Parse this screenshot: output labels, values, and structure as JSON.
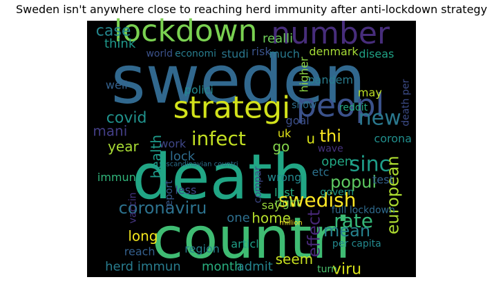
{
  "chart_data": {
    "type": "wordcloud",
    "title": "Sweden isn't anywhere close to reaching herd immunity after anti-lockdown strategy",
    "background": "#000000",
    "words": [
      {
        "text": "sweden",
        "x": 0.46,
        "y": 0.23,
        "size": 96,
        "color": "#31688e",
        "rot": 0
      },
      {
        "text": "death",
        "x": 0.41,
        "y": 0.61,
        "size": 90,
        "color": "#21a685",
        "rot": 0
      },
      {
        "text": "countri",
        "x": 0.5,
        "y": 0.85,
        "size": 82,
        "color": "#3fbc73",
        "rot": 0
      },
      {
        "text": "lockdown",
        "x": 0.3,
        "y": 0.04,
        "size": 44,
        "color": "#7ad151",
        "rot": 0
      },
      {
        "text": "number",
        "x": 0.74,
        "y": 0.05,
        "size": 44,
        "color": "#472d7b",
        "rot": 0
      },
      {
        "text": "peopl",
        "x": 0.77,
        "y": 0.33,
        "size": 46,
        "color": "#3b528b",
        "rot": 0
      },
      {
        "text": "strategi",
        "x": 0.44,
        "y": 0.34,
        "size": 44,
        "color": "#d2e21b",
        "rot": 0
      },
      {
        "text": "infect",
        "x": 0.4,
        "y": 0.46,
        "size": 28,
        "color": "#c2df23",
        "rot": 0
      },
      {
        "text": "coronaviru",
        "x": 0.23,
        "y": 0.73,
        "size": 24,
        "color": "#2c728e",
        "rot": 0
      },
      {
        "text": "swedish",
        "x": 0.7,
        "y": 0.7,
        "size": 28,
        "color": "#fde725",
        "rot": 0
      },
      {
        "text": "sinc",
        "x": 0.86,
        "y": 0.56,
        "size": 30,
        "color": "#1f9e89",
        "rot": 0
      },
      {
        "text": "popul",
        "x": 0.81,
        "y": 0.63,
        "size": 24,
        "color": "#5ec962",
        "rot": 0
      },
      {
        "text": "new",
        "x": 0.89,
        "y": 0.38,
        "size": 30,
        "color": "#2a788e",
        "rot": 0
      },
      {
        "text": "rate",
        "x": 0.81,
        "y": 0.78,
        "size": 28,
        "color": "#35b779",
        "rot": 0
      },
      {
        "text": "mean",
        "x": 0.79,
        "y": 0.82,
        "size": 24,
        "color": "#26828e",
        "rot": 0
      },
      {
        "text": "european",
        "x": 0.93,
        "y": 0.68,
        "size": 24,
        "color": "#addc30",
        "rot": 270
      },
      {
        "text": "effect",
        "x": 0.69,
        "y": 0.83,
        "size": 24,
        "color": "#482878",
        "rot": 270
      },
      {
        "text": "viru",
        "x": 0.79,
        "y": 0.97,
        "size": 22,
        "color": "#d8e219",
        "rot": 0
      },
      {
        "text": "seem",
        "x": 0.63,
        "y": 0.93,
        "size": 20,
        "color": "#c8e020",
        "rot": 0
      },
      {
        "text": "herd immun",
        "x": 0.17,
        "y": 0.96,
        "size": 18,
        "color": "#287c8e",
        "rot": 0
      },
      {
        "text": "month",
        "x": 0.41,
        "y": 0.96,
        "size": 18,
        "color": "#29af7f",
        "rot": 0
      },
      {
        "text": "admit",
        "x": 0.51,
        "y": 0.96,
        "size": 18,
        "color": "#25848e",
        "rot": 0
      },
      {
        "text": "turn",
        "x": 0.73,
        "y": 0.97,
        "size": 14,
        "color": "#4ac16d",
        "rot": 0
      },
      {
        "text": "long",
        "x": 0.17,
        "y": 0.84,
        "size": 20,
        "color": "#f1e51d",
        "rot": 0
      },
      {
        "text": "reach",
        "x": 0.16,
        "y": 0.9,
        "size": 16,
        "color": "#35608d",
        "rot": 0
      },
      {
        "text": "region",
        "x": 0.35,
        "y": 0.89,
        "size": 16,
        "color": "#277f8e",
        "rot": 0
      },
      {
        "text": "articl",
        "x": 0.48,
        "y": 0.87,
        "size": 16,
        "color": "#1fa088",
        "rot": 0
      },
      {
        "text": "home",
        "x": 0.56,
        "y": 0.77,
        "size": 20,
        "color": "#b5de2b",
        "rot": 0
      },
      {
        "text": "one",
        "x": 0.46,
        "y": 0.77,
        "size": 18,
        "color": "#2e6f8e",
        "rot": 0
      },
      {
        "text": "less",
        "x": 0.3,
        "y": 0.66,
        "size": 16,
        "color": "#3e4989",
        "rot": 0
      },
      {
        "text": "report",
        "x": 0.25,
        "y": 0.68,
        "size": 14,
        "color": "#38588c",
        "rot": 270
      },
      {
        "text": "vaccin",
        "x": 0.14,
        "y": 0.73,
        "size": 14,
        "color": "#453581",
        "rot": 270
      },
      {
        "text": "lock",
        "x": 0.29,
        "y": 0.53,
        "size": 18,
        "color": "#2f6c8e",
        "rot": 0
      },
      {
        "text": "work",
        "x": 0.26,
        "y": 0.48,
        "size": 16,
        "color": "#3f4788",
        "rot": 0
      },
      {
        "text": "health",
        "x": 0.21,
        "y": 0.53,
        "size": 20,
        "color": "#1e9b8a",
        "rot": 270
      },
      {
        "text": "year",
        "x": 0.11,
        "y": 0.49,
        "size": 20,
        "color": "#a8db34",
        "rot": 0
      },
      {
        "text": "covid",
        "x": 0.12,
        "y": 0.38,
        "size": 22,
        "color": "#20928c",
        "rot": 0
      },
      {
        "text": "mani",
        "x": 0.07,
        "y": 0.43,
        "size": 20,
        "color": "#433e85",
        "rot": 0
      },
      {
        "text": "immun",
        "x": 0.09,
        "y": 0.61,
        "size": 16,
        "color": "#31b57b",
        "rot": 0
      },
      {
        "text": "well",
        "x": 0.09,
        "y": 0.25,
        "size": 16,
        "color": "#34618d",
        "rot": 0
      },
      {
        "text": "case",
        "x": 0.08,
        "y": 0.04,
        "size": 22,
        "color": "#24878e",
        "rot": 0
      },
      {
        "text": "think",
        "x": 0.1,
        "y": 0.09,
        "size": 18,
        "color": "#1f988b",
        "rot": 0
      },
      {
        "text": "realli",
        "x": 0.58,
        "y": 0.07,
        "size": 18,
        "color": "#6ece58",
        "rot": 0
      },
      {
        "text": "world",
        "x": 0.22,
        "y": 0.13,
        "size": 14,
        "color": "#3b528b",
        "rot": 0
      },
      {
        "text": "economi",
        "x": 0.33,
        "y": 0.13,
        "size": 14,
        "color": "#287d8e",
        "rot": 0
      },
      {
        "text": "studi",
        "x": 0.45,
        "y": 0.13,
        "size": 16,
        "color": "#2a778e",
        "rot": 0
      },
      {
        "text": "risk",
        "x": 0.53,
        "y": 0.12,
        "size": 16,
        "color": "#3a538b",
        "rot": 0
      },
      {
        "text": "much",
        "x": 0.6,
        "y": 0.13,
        "size": 16,
        "color": "#29798e",
        "rot": 0
      },
      {
        "text": "denmark",
        "x": 0.75,
        "y": 0.12,
        "size": 16,
        "color": "#a5db36",
        "rot": 0
      },
      {
        "text": "diseas",
        "x": 0.88,
        "y": 0.13,
        "size": 16,
        "color": "#20a386",
        "rot": 0
      },
      {
        "text": "higher",
        "x": 0.66,
        "y": 0.21,
        "size": 16,
        "color": "#8fd744",
        "rot": 270
      },
      {
        "text": "pandem",
        "x": 0.74,
        "y": 0.23,
        "size": 16,
        "color": "#287c8e",
        "rot": 0
      },
      {
        "text": "polici",
        "x": 0.34,
        "y": 0.27,
        "size": 16,
        "color": "#23898e",
        "rot": 0
      },
      {
        "text": "may",
        "x": 0.86,
        "y": 0.28,
        "size": 16,
        "color": "#bddf26",
        "rot": 0
      },
      {
        "text": "death per",
        "x": 0.97,
        "y": 0.32,
        "size": 14,
        "color": "#3d4d8a",
        "rot": 270
      },
      {
        "text": "show",
        "x": 0.66,
        "y": 0.33,
        "size": 14,
        "color": "#2e6d8e",
        "rot": 0
      },
      {
        "text": "reddit",
        "x": 0.81,
        "y": 0.34,
        "size": 14,
        "color": "#25ac82",
        "rot": 0
      },
      {
        "text": "goal",
        "x": 0.64,
        "y": 0.39,
        "size": 16,
        "color": "#3c4f8a",
        "rot": 0
      },
      {
        "text": "uk",
        "x": 0.6,
        "y": 0.44,
        "size": 16,
        "color": "#e2e418",
        "rot": 0
      },
      {
        "text": "go",
        "x": 0.59,
        "y": 0.49,
        "size": 20,
        "color": "#84d44b",
        "rot": 0
      },
      {
        "text": "u",
        "x": 0.68,
        "y": 0.46,
        "size": 20,
        "color": "#d8e219",
        "rot": 0
      },
      {
        "text": "thi",
        "x": 0.74,
        "y": 0.45,
        "size": 24,
        "color": "#f8e621",
        "rot": 0
      },
      {
        "text": "corona",
        "x": 0.93,
        "y": 0.46,
        "size": 16,
        "color": "#218f8d",
        "rot": 0
      },
      {
        "text": "wave",
        "x": 0.74,
        "y": 0.5,
        "size": 14,
        "color": "#46327e",
        "rot": 0
      },
      {
        "text": "open",
        "x": 0.76,
        "y": 0.55,
        "size": 18,
        "color": "#22a884",
        "rot": 0
      },
      {
        "text": "test",
        "x": 0.9,
        "y": 0.62,
        "size": 16,
        "color": "#34618d",
        "rot": 0
      },
      {
        "text": "etc",
        "x": 0.71,
        "y": 0.59,
        "size": 16,
        "color": "#2c728e",
        "rot": 0
      },
      {
        "text": "wrong",
        "x": 0.6,
        "y": 0.61,
        "size": 16,
        "color": "#23898e",
        "rot": 0
      },
      {
        "text": "last",
        "x": 0.6,
        "y": 0.67,
        "size": 16,
        "color": "#26ad81",
        "rot": 0
      },
      {
        "text": "right",
        "x": 0.61,
        "y": 0.71,
        "size": 16,
        "color": "#7ad151",
        "rot": 0
      },
      {
        "text": "say",
        "x": 0.56,
        "y": 0.72,
        "size": 16,
        "color": "#9bd93c",
        "rot": 0
      },
      {
        "text": "compar",
        "x": 0.52,
        "y": 0.64,
        "size": 14,
        "color": "#3e4989",
        "rot": 270
      },
      {
        "text": "govern",
        "x": 0.76,
        "y": 0.67,
        "size": 14,
        "color": "#1f9a8a",
        "rot": 0
      },
      {
        "text": "full lockdown",
        "x": 0.84,
        "y": 0.74,
        "size": 14,
        "color": "#2f6b8e",
        "rot": 0
      },
      {
        "text": "per capita",
        "x": 0.82,
        "y": 0.87,
        "size": 14,
        "color": "#23898e",
        "rot": 0
      },
      {
        "text": "scandinavian countri",
        "x": 0.35,
        "y": 0.56,
        "size": 10,
        "color": "#2d718e",
        "rot": 0
      },
      {
        "text": "million",
        "x": 0.62,
        "y": 0.79,
        "size": 10,
        "color": "#fde725",
        "rot": 0
      }
    ]
  }
}
